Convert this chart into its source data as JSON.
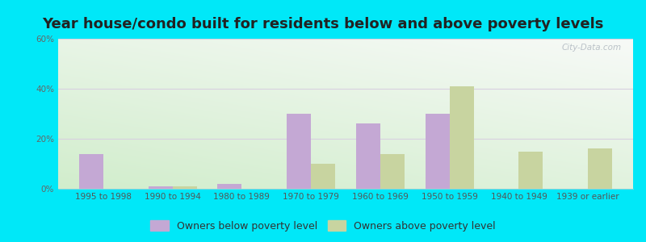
{
  "title": "Year house/condo built for residents below and above poverty levels",
  "categories": [
    "1995 to 1998",
    "1990 to 1994",
    "1980 to 1989",
    "1970 to 1979",
    "1960 to 1969",
    "1950 to 1959",
    "1940 to 1949",
    "1939 or earlier"
  ],
  "below_poverty": [
    14,
    1,
    2,
    30,
    26,
    30,
    0,
    0
  ],
  "above_poverty": [
    0,
    1,
    0,
    10,
    14,
    41,
    15,
    16
  ],
  "below_color": "#c4a8d4",
  "above_color": "#c8d4a0",
  "ylim": [
    0,
    60
  ],
  "yticks": [
    0,
    20,
    40,
    60
  ],
  "yticklabels": [
    "0%",
    "20%",
    "40%",
    "60%"
  ],
  "bar_width": 0.35,
  "outer_background": "#00e8f8",
  "grid_color": "#d8d0e0",
  "legend_below_label": "Owners below poverty level",
  "legend_above_label": "Owners above poverty level",
  "watermark": "City-Data.com",
  "title_fontsize": 13,
  "tick_fontsize": 7.5,
  "legend_fontsize": 9
}
